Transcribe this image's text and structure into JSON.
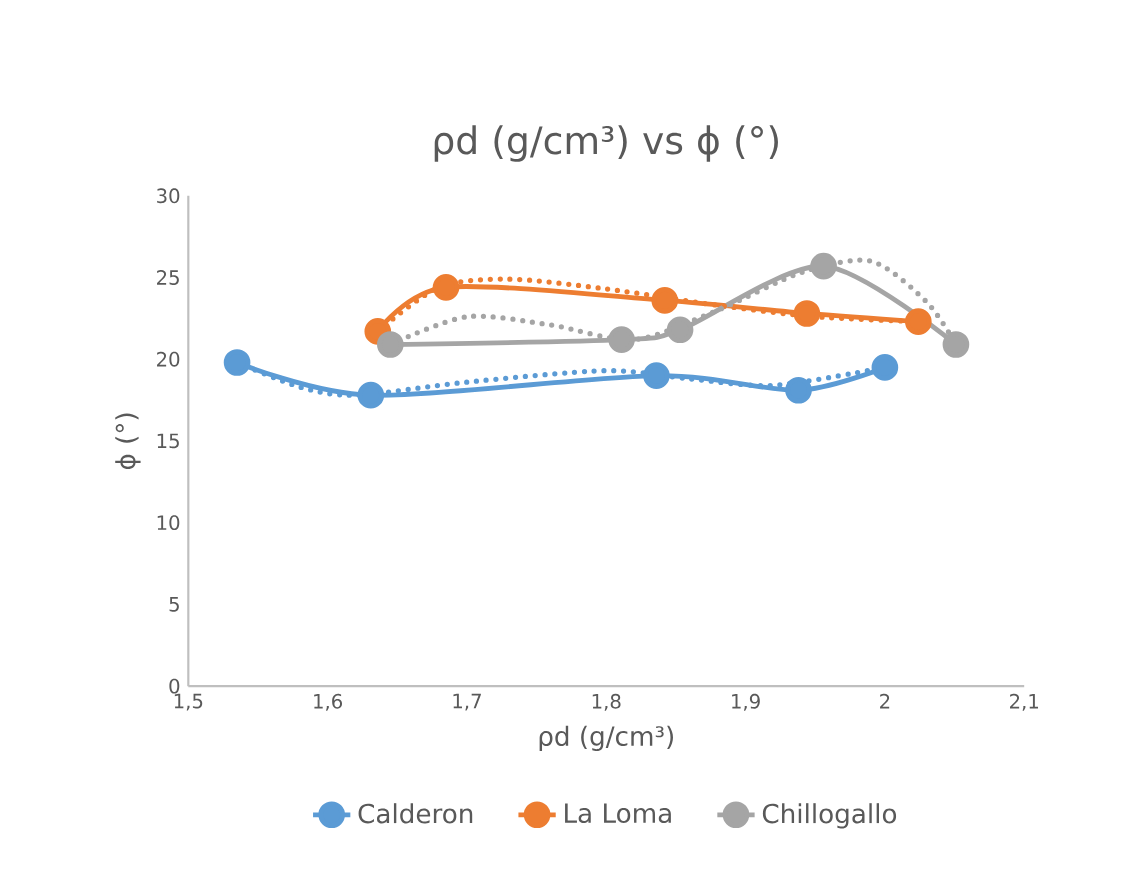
{
  "chart_data": {
    "type": "line",
    "title": "ρd (g/cm³) vs ϕ (°)",
    "xlabel": "ρd (g/cm³)",
    "ylabel": "ϕ (°)",
    "xlim": [
      1.5,
      2.1
    ],
    "xticks": [
      {
        "value": 1.5,
        "label": "1,5"
      },
      {
        "value": 1.6,
        "label": "1,6"
      },
      {
        "value": 1.7,
        "label": "1,7"
      },
      {
        "value": 1.8,
        "label": "1,8"
      },
      {
        "value": 1.9,
        "label": "1,9"
      },
      2,
      {
        "value": 2.1,
        "label": "2,1"
      }
    ],
    "ylim": [
      0,
      30
    ],
    "yticks": [
      0,
      5,
      10,
      15,
      20,
      25,
      30
    ],
    "grid": false,
    "legend": "bottom",
    "marker": "circle",
    "line_style": "solid",
    "series": [
      {
        "name": "Calderon",
        "color": "#5b9bd5",
        "x": [
          1.535,
          1.631,
          1.836,
          1.938,
          2.0
        ],
        "values": [
          19.8,
          17.8,
          19.0,
          18.1,
          19.5
        ]
      },
      {
        "name": "La Loma",
        "color": "#ed7d31",
        "x": [
          1.636,
          1.685,
          1.842,
          1.944,
          2.024
        ],
        "values": [
          21.7,
          24.4,
          23.6,
          22.8,
          22.3
        ]
      },
      {
        "name": "Chillogallo",
        "color": "#a5a5a5",
        "x": [
          1.645,
          1.811,
          1.853,
          1.956,
          2.051
        ],
        "values": [
          20.9,
          21.2,
          21.8,
          25.7,
          20.9
        ]
      },
      {
        "type": "line",
        "color": "#5b9bd5",
        "line_style": "dotted",
        "marker": "none",
        "x": [
          1.535,
          1.58,
          1.62,
          1.7,
          1.8,
          1.86,
          1.92,
          2.0
        ],
        "values": [
          19.8,
          18.3,
          17.8,
          18.6,
          19.3,
          18.8,
          18.4,
          19.5
        ]
      },
      {
        "type": "line",
        "color": "#ed7d31",
        "line_style": "dotted",
        "marker": "none",
        "x": [
          1.636,
          1.68,
          1.73,
          1.8,
          1.88,
          1.95,
          2.024
        ],
        "values": [
          21.7,
          24.4,
          24.9,
          24.3,
          23.3,
          22.6,
          22.3
        ]
      },
      {
        "type": "line",
        "color": "#a5a5a5",
        "line_style": "dotted",
        "marker": "none",
        "x": [
          1.645,
          1.7,
          1.76,
          1.82,
          1.88,
          1.94,
          1.99,
          2.03,
          2.051
        ],
        "values": [
          20.9,
          22.6,
          22.1,
          21.2,
          23.0,
          25.3,
          26.0,
          23.5,
          20.9
        ]
      }
    ]
  }
}
